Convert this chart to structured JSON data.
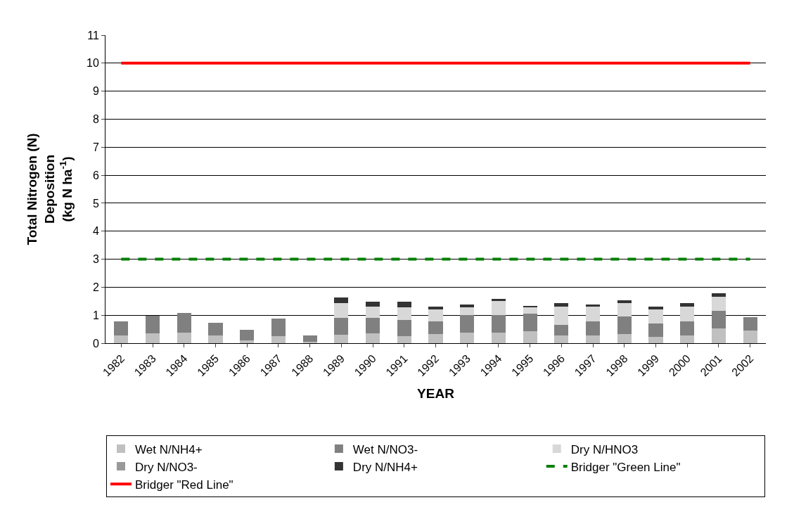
{
  "chart_data": {
    "type": "bar",
    "stacked": true,
    "xlabel": "YEAR",
    "ylabel": "Total Nitrogen (N)\nDeposition\n(kg N ha$^{-1}$)",
    "categories": [
      "1982",
      "1983",
      "1984",
      "1985",
      "1986",
      "1987",
      "1988",
      "1989",
      "1990",
      "1991",
      "1992",
      "1993",
      "1994",
      "1995",
      "1996",
      "1997",
      "1998",
      "1999",
      "2000",
      "2001",
      "2002"
    ],
    "series": [
      {
        "name": "Wet N/NH4+",
        "color": "#c0c0c0",
        "values": [
          0.27,
          0.35,
          0.37,
          0.27,
          0.11,
          0.24,
          0.06,
          0.3,
          0.35,
          0.24,
          0.32,
          0.37,
          0.37,
          0.43,
          0.27,
          0.27,
          0.32,
          0.22,
          0.27,
          0.53,
          0.45
        ]
      },
      {
        "name": "Wet N/NO3-",
        "color": "#808080",
        "values": [
          0.52,
          0.62,
          0.71,
          0.47,
          0.37,
          0.63,
          0.21,
          0.6,
          0.55,
          0.6,
          0.45,
          0.63,
          0.63,
          0.62,
          0.39,
          0.52,
          0.63,
          0.49,
          0.52,
          0.63,
          0.47
        ]
      },
      {
        "name": "Dry N/HNO3",
        "color": "#d8d8d8",
        "values": [
          0,
          0,
          0,
          0,
          0,
          0,
          0,
          0.54,
          0.41,
          0.45,
          0.44,
          0.29,
          0.5,
          0.24,
          0.65,
          0.52,
          0.49,
          0.5,
          0.52,
          0.49,
          0
        ]
      },
      {
        "name": "Dry N/NO3-",
        "color": "#999999",
        "values": [
          0,
          0,
          0,
          0,
          0,
          0,
          0,
          0,
          0,
          0,
          0,
          0,
          0,
          0,
          0,
          0,
          0,
          0,
          0,
          0,
          0
        ]
      },
      {
        "name": "Dry N/NH4+",
        "color": "#333333",
        "values": [
          0,
          0,
          0,
          0,
          0,
          0,
          0,
          0.19,
          0.16,
          0.18,
          0.1,
          0.08,
          0.07,
          0.02,
          0.11,
          0.06,
          0.08,
          0.1,
          0.11,
          0.13,
          0
        ]
      }
    ],
    "ref_lines": [
      {
        "axis": "y",
        "value": 3,
        "label": "Bridger \"Green Line\"",
        "color": "#008000",
        "line_style": "dashed"
      },
      {
        "axis": "y",
        "value": 10,
        "label": "Bridger \"Red Line\"",
        "color": "#ff0000",
        "line_style": "solid"
      }
    ],
    "ylim": [
      0,
      11
    ],
    "yticks": [
      0,
      1,
      2,
      3,
      4,
      5,
      6,
      7,
      8,
      9,
      10,
      11
    ],
    "grid": "y",
    "legend": "bottom"
  }
}
